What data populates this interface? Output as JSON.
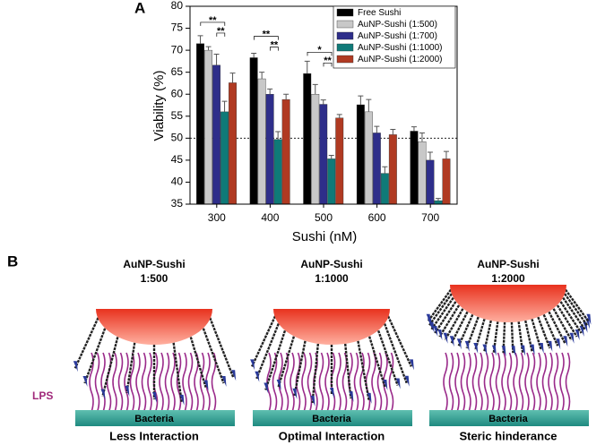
{
  "chart_data": {
    "type": "bar",
    "panel_label": "A",
    "xlabel": "Sushi (nM)",
    "ylabel": "Viability (%)",
    "categories": [
      "300",
      "400",
      "500",
      "600",
      "700"
    ],
    "series": [
      {
        "name": "Free Sushi",
        "color": "#000000",
        "values": [
          71.5,
          68.3,
          64.7,
          57.6,
          51.6
        ],
        "errors": [
          1.8,
          1.0,
          2.8,
          2.0,
          1.0
        ]
      },
      {
        "name": "AuNP-Sushi (1:500)",
        "color": "#c8c8c8",
        "values": [
          70.0,
          63.5,
          60.0,
          56.0,
          49.2
        ],
        "errors": [
          0.8,
          1.5,
          2.2,
          2.8,
          2.0
        ]
      },
      {
        "name": "AuNP-Sushi (1:700)",
        "color": "#2e2e8a",
        "values": [
          66.6,
          60.0,
          57.7,
          51.2,
          45.0
        ],
        "errors": [
          2.5,
          1.2,
          1.0,
          1.5,
          1.8
        ]
      },
      {
        "name": "AuNP-Sushi (1:1000)",
        "color": "#0f7a78",
        "values": [
          56.0,
          49.7,
          45.3,
          42.0,
          35.8
        ],
        "errors": [
          2.4,
          1.8,
          0.8,
          1.5,
          0.5
        ]
      },
      {
        "name": "AuNP-Sushi (1:2000)",
        "color": "#b03a22",
        "values": [
          62.6,
          58.8,
          54.6,
          50.8,
          45.3
        ],
        "errors": [
          2.2,
          1.2,
          0.8,
          1.2,
          1.7
        ]
      }
    ],
    "ylim": [
      35,
      80
    ],
    "yticks": [
      35,
      40,
      45,
      50,
      55,
      60,
      65,
      70,
      75,
      80
    ],
    "reference_line": 50,
    "legend": "upper right",
    "annotations": [
      "**",
      "**",
      "**",
      "**",
      "*",
      "**"
    ]
  },
  "diagram": {
    "panel_label": "B",
    "lps_label": "LPS",
    "base_label": "Bacteria",
    "panels": [
      {
        "name": "AuNP-Sushi",
        "ratio": "1:500",
        "caption": "Less Interaction"
      },
      {
        "name": "AuNP-Sushi",
        "ratio": "1:1000",
        "caption": "Optimal Interaction"
      },
      {
        "name": "AuNP-Sushi",
        "ratio": "1:2000",
        "caption": "Steric hinderance"
      }
    ]
  }
}
